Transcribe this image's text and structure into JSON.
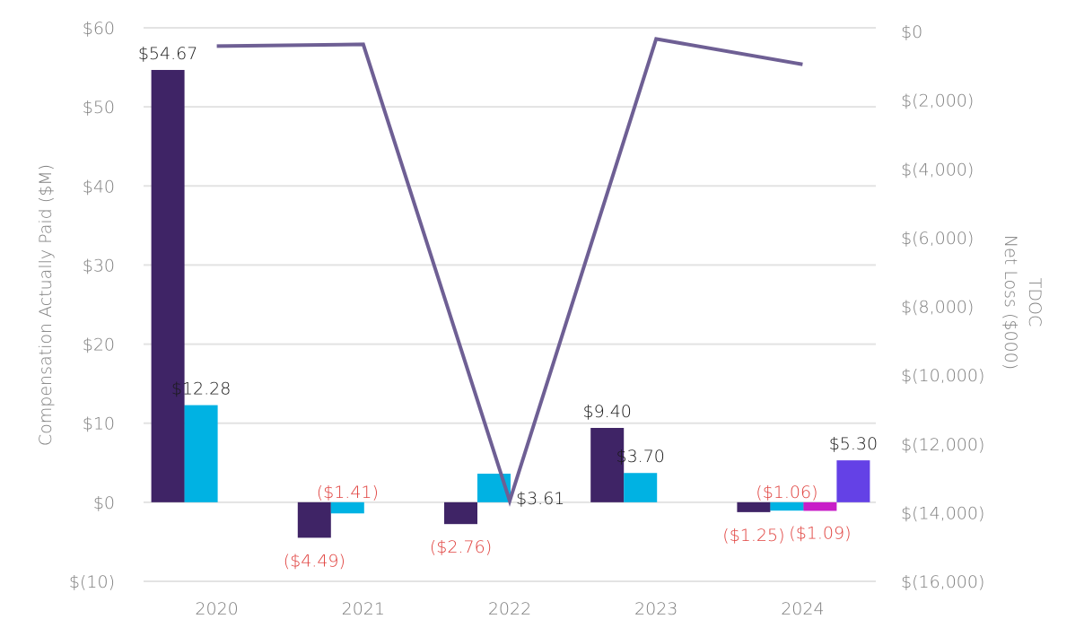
{
  "chart_data": {
    "type": "bar",
    "categories": [
      "2020",
      "2021",
      "2022",
      "2023",
      "2024"
    ],
    "ylabel": "Compensation Actually Paid ($M)",
    "y2label_line1": "TDOC",
    "y2label_line2": "Net Loss ($000)",
    "ylim": [
      -10,
      60
    ],
    "y2lim": [
      -16000,
      0
    ],
    "yticks": [
      {
        "value": 60,
        "label": "$60"
      },
      {
        "value": 50,
        "label": "$50"
      },
      {
        "value": 40,
        "label": "$40"
      },
      {
        "value": 30,
        "label": "$30"
      },
      {
        "value": 20,
        "label": "$20"
      },
      {
        "value": 10,
        "label": "$10"
      },
      {
        "value": 0,
        "label": "$0"
      },
      {
        "value": -10,
        "label": "$(10)"
      }
    ],
    "y2ticks": [
      {
        "value": 0,
        "label": "$0"
      },
      {
        "value": -2000,
        "label": "$(2,000)"
      },
      {
        "value": -4000,
        "label": "$(4,000)"
      },
      {
        "value": -6000,
        "label": "$(6,000)"
      },
      {
        "value": -8000,
        "label": "$(8,000)"
      },
      {
        "value": -10000,
        "label": "$(10,000)"
      },
      {
        "value": -12000,
        "label": "$(12,000)"
      },
      {
        "value": -14000,
        "label": "$(14,000)"
      },
      {
        "value": -16000,
        "label": "$(16,000)"
      }
    ],
    "bars": [
      {
        "category": "2020",
        "slot": 0,
        "value": 54.67,
        "label": "$54.67",
        "color": "#3f2466"
      },
      {
        "category": "2020",
        "slot": 1,
        "value": 12.28,
        "label": "$12.28",
        "color": "#00b2e3"
      },
      {
        "category": "2021",
        "slot": 0,
        "value": -4.49,
        "label": "($4.49)",
        "color": "#3f2466"
      },
      {
        "category": "2021",
        "slot": 1,
        "value": -1.41,
        "label": "($1.41)",
        "color": "#00b2e3"
      },
      {
        "category": "2022",
        "slot": 0,
        "value": -2.76,
        "label": "($2.76)",
        "color": "#3f2466"
      },
      {
        "category": "2022",
        "slot": 1,
        "value": 3.61,
        "label": "$3.61",
        "color": "#00b2e3"
      },
      {
        "category": "2023",
        "slot": 0,
        "value": 9.4,
        "label": "$9.40",
        "color": "#3f2466"
      },
      {
        "category": "2023",
        "slot": 1,
        "value": 3.7,
        "label": "$3.70",
        "color": "#00b2e3"
      },
      {
        "category": "2024",
        "slot": 0,
        "value": -1.25,
        "label": "($1.25)",
        "color": "#3f2466"
      },
      {
        "category": "2024",
        "slot": 1,
        "value": -1.06,
        "label": "($1.06)",
        "color": "#00b2e3"
      },
      {
        "category": "2024",
        "slot": 2,
        "value": -1.09,
        "label": "($1.09)",
        "color": "#c81ec8"
      },
      {
        "category": "2024",
        "slot": 3,
        "value": 5.3,
        "label": "$5.30",
        "color": "#6441e6"
      }
    ],
    "line": {
      "name": "TDOC Net Loss ($000)",
      "color": "#6e5f94",
      "x": [
        "2020",
        "2021",
        "2022",
        "2023",
        "2024"
      ],
      "values": [
        -428,
        -377,
        -13660,
        -220,
        -960
      ]
    },
    "positive_label_color": "#1a1a1a",
    "negative_label_color": "#e0413e"
  }
}
